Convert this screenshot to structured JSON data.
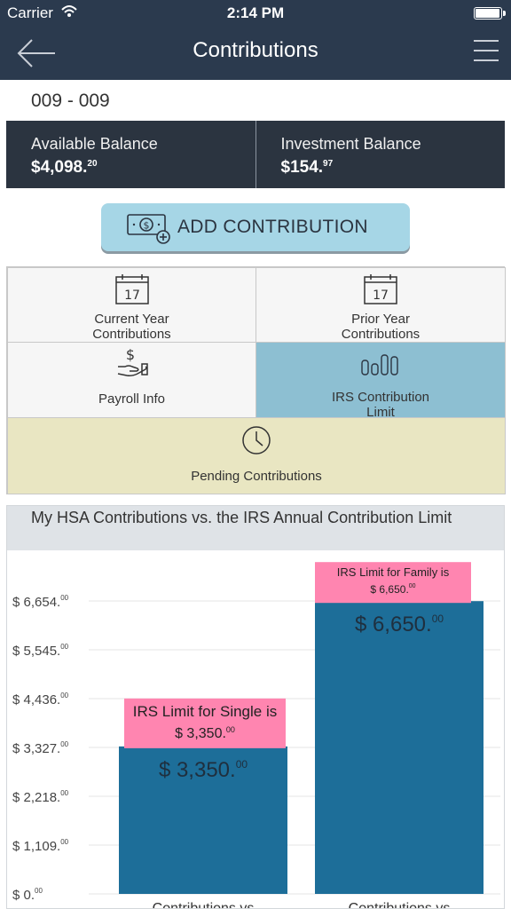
{
  "status_bar": {
    "carrier": "Carrier",
    "time": "2:14 PM",
    "battery_level": 1.0
  },
  "nav": {
    "title": "Contributions",
    "back_icon": "back-arrow-icon",
    "menu_icon": "hamburger-menu-icon"
  },
  "account": {
    "id": "009 - 009"
  },
  "balances": {
    "available": {
      "label": "Available Balance",
      "amount": "$4,098.",
      "cents": "20"
    },
    "investment": {
      "label": "Investment Balance",
      "amount": "$154.",
      "cents": "97"
    }
  },
  "add_button": {
    "label": "ADD CONTRIBUTION",
    "icon": "money-add-icon"
  },
  "tiles": {
    "current_year": {
      "label": "Current Year Contributions",
      "icon": "calendar-icon",
      "icon_text": "17"
    },
    "prior_year": {
      "label": "Prior Year Contributions",
      "icon": "calendar-icon",
      "icon_text": "17"
    },
    "payroll": {
      "label": "Payroll Info",
      "icon": "hand-dollar-icon",
      "icon_text": "$"
    },
    "irs_limit": {
      "label": "IRS Contribution Limit",
      "icon": "bar-chart-icon"
    },
    "pending": {
      "label": "Pending Contributions",
      "icon": "clock-icon"
    }
  },
  "colors": {
    "nav": "#2b3a4e",
    "balance_bg": "#2b3440",
    "button": "#a6d6e6",
    "active_tile": "#8dbfd2",
    "pending_tile": "#e9e6c2",
    "bar": "#1d6e99",
    "annotation": "#ff85b0"
  },
  "chart": {
    "title": "My HSA Contributions vs. the IRS Annual Contribution Limit"
  },
  "chart_data": {
    "type": "bar",
    "title": "My HSA Contributions vs. the IRS Annual Contribution Limit",
    "categories": [
      "Contributions vs",
      "Contributions vs"
    ],
    "values": [
      3350,
      6650
    ],
    "value_labels": [
      {
        "main": "$ 3,350.",
        "cents": "00"
      },
      {
        "main": "$ 6,650.",
        "cents": "00"
      }
    ],
    "annotations": [
      {
        "line1": "IRS Limit for Single is",
        "line2": "$ 3,350.",
        "cents": "00"
      },
      {
        "line1": "IRS Limit for Family is",
        "line2": "$ 6,650.",
        "cents": "00"
      }
    ],
    "y_ticks": [
      {
        "value": 0,
        "label": "$ 0.",
        "cents": "00"
      },
      {
        "value": 1109,
        "label": "$ 1,109.",
        "cents": "00"
      },
      {
        "value": 2218,
        "label": "$ 2,218.",
        "cents": "00"
      },
      {
        "value": 3327,
        "label": "$ 3,327.",
        "cents": "00"
      },
      {
        "value": 4436,
        "label": "$ 4,436.",
        "cents": "00"
      },
      {
        "value": 5545,
        "label": "$ 5,545.",
        "cents": "00"
      },
      {
        "value": 6654,
        "label": "$ 6,654.",
        "cents": "00"
      }
    ],
    "ylim": [
      0,
      6654
    ],
    "grid": true
  }
}
